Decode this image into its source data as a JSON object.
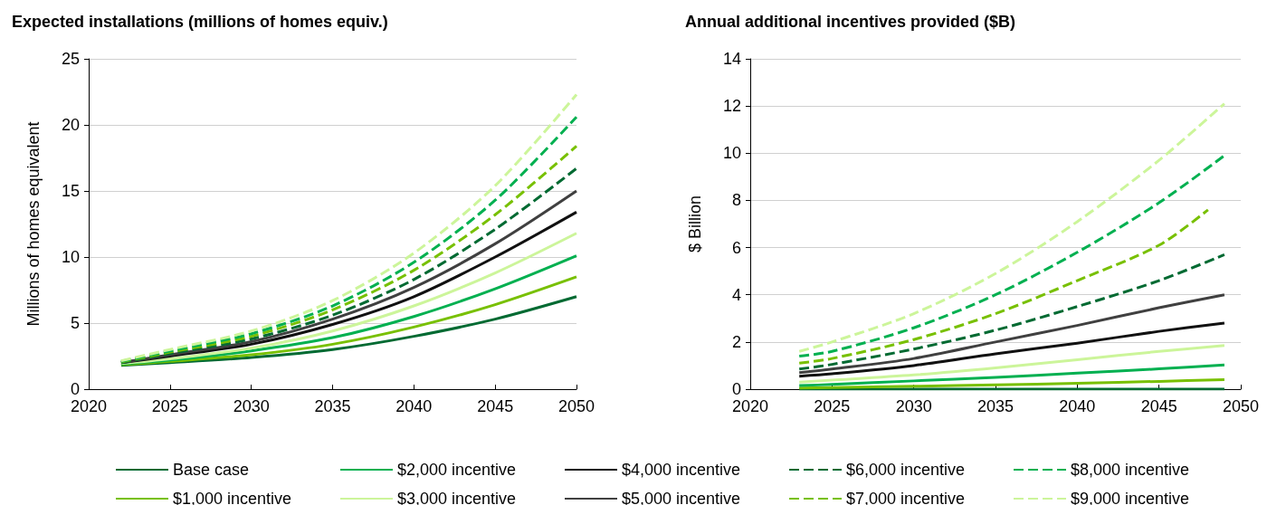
{
  "chart_data": [
    {
      "type": "line",
      "title": "Expected installations (millions of homes equiv.)",
      "ylabel": "Millions of homes equivalent",
      "x": [
        2022,
        2025,
        2030,
        2035,
        2040,
        2045,
        2050
      ],
      "xlim": [
        2020,
        2050
      ],
      "xticks": [
        2020,
        2025,
        2030,
        2035,
        2040,
        2045,
        2050
      ],
      "ylim": [
        0,
        25
      ],
      "yticks": [
        0,
        5,
        10,
        15,
        20,
        25
      ],
      "grid": "y",
      "legend": "bottom",
      "marker": "none",
      "series": [
        {
          "name": "Base case",
          "color": "#006a32",
          "line_style": "solid",
          "values": [
            1.8,
            2.0,
            2.4,
            3.0,
            4.0,
            5.3,
            7.0
          ]
        },
        {
          "name": "$1,000 incentive",
          "color": "#78c000",
          "line_style": "solid",
          "values": [
            1.85,
            2.1,
            2.6,
            3.4,
            4.7,
            6.4,
            8.5
          ]
        },
        {
          "name": "$2,000 incentive",
          "color": "#00b050",
          "line_style": "solid",
          "values": [
            1.9,
            2.2,
            2.9,
            3.9,
            5.5,
            7.6,
            10.1
          ]
        },
        {
          "name": "$3,000 incentive",
          "color": "#ccf59a",
          "line_style": "solid",
          "values": [
            1.95,
            2.3,
            3.1,
            4.4,
            6.3,
            8.8,
            11.8
          ]
        },
        {
          "name": "$4,000 incentive",
          "color": "#111111",
          "line_style": "solid",
          "values": [
            2.0,
            2.5,
            3.4,
            4.9,
            7.0,
            10.0,
            13.4
          ]
        },
        {
          "name": "$5,000 incentive",
          "color": "#404040",
          "line_style": "solid",
          "values": [
            2.0,
            2.6,
            3.6,
            5.3,
            7.7,
            11.0,
            15.0
          ]
        },
        {
          "name": "$6,000 incentive",
          "color": "#006a32",
          "line_style": "dashed",
          "values": [
            2.0,
            2.7,
            3.8,
            5.6,
            8.3,
            12.1,
            16.7
          ]
        },
        {
          "name": "$7,000 incentive",
          "color": "#78c000",
          "line_style": "dashed",
          "values": [
            2.05,
            2.8,
            4.0,
            6.0,
            9.0,
            13.2,
            18.4
          ]
        },
        {
          "name": "$8,000 incentive",
          "color": "#00b050",
          "line_style": "dashed",
          "values": [
            2.1,
            2.9,
            4.2,
            6.3,
            9.6,
            14.3,
            20.6
          ]
        },
        {
          "name": "$9,000 incentive",
          "color": "#ccf59a",
          "line_style": "dashed",
          "values": [
            2.15,
            3.0,
            4.4,
            6.7,
            10.3,
            15.4,
            22.3
          ]
        }
      ]
    },
    {
      "type": "line",
      "title": "Annual additional incentives provided ($B)",
      "ylabel": "$ Billion",
      "x": [
        2023,
        2025,
        2030,
        2035,
        2040,
        2045,
        2049
      ],
      "xlim": [
        2020,
        2050
      ],
      "xticks": [
        2020,
        2025,
        2030,
        2035,
        2040,
        2045,
        2050
      ],
      "ylim": [
        0,
        14
      ],
      "yticks": [
        0,
        2,
        4,
        6,
        8,
        10,
        12,
        14
      ],
      "grid": "y",
      "marker": "none",
      "series": [
        {
          "color": "#006a32",
          "line_style": "solid",
          "values": [
            0,
            0,
            0,
            0,
            0,
            0,
            0
          ]
        },
        {
          "color": "#78c000",
          "line_style": "solid",
          "values": [
            0.05,
            0.07,
            0.12,
            0.18,
            0.25,
            0.33,
            0.4
          ]
        },
        {
          "color": "#00b050",
          "line_style": "solid",
          "values": [
            0.15,
            0.2,
            0.35,
            0.5,
            0.68,
            0.86,
            1.03
          ]
        },
        {
          "color": "#ccf59a",
          "line_style": "solid",
          "values": [
            0.3,
            0.38,
            0.6,
            0.9,
            1.25,
            1.6,
            1.85
          ]
        },
        {
          "color": "#111111",
          "line_style": "solid",
          "values": [
            0.55,
            0.65,
            1.0,
            1.5,
            1.95,
            2.45,
            2.8
          ]
        },
        {
          "color": "#404040",
          "line_style": "solid",
          "values": [
            0.7,
            0.85,
            1.3,
            2.0,
            2.7,
            3.45,
            4.0
          ]
        },
        {
          "color": "#006a32",
          "line_style": "dashed",
          "values": [
            0.85,
            1.05,
            1.7,
            2.5,
            3.5,
            4.6,
            5.7
          ]
        },
        {
          "color": "#78c000",
          "line_style": "dashed",
          "x": [
            2023,
            2025,
            2030,
            2035,
            2040,
            2045,
            2048
          ],
          "values": [
            1.1,
            1.3,
            2.1,
            3.2,
            4.6,
            6.1,
            7.6
          ]
        },
        {
          "color": "#00b050",
          "line_style": "dashed",
          "values": [
            1.4,
            1.6,
            2.6,
            4.0,
            5.8,
            7.9,
            9.9
          ]
        },
        {
          "color": "#ccf59a",
          "line_style": "dashed",
          "values": [
            1.6,
            2.0,
            3.2,
            4.9,
            7.1,
            9.7,
            12.1
          ]
        }
      ]
    }
  ]
}
